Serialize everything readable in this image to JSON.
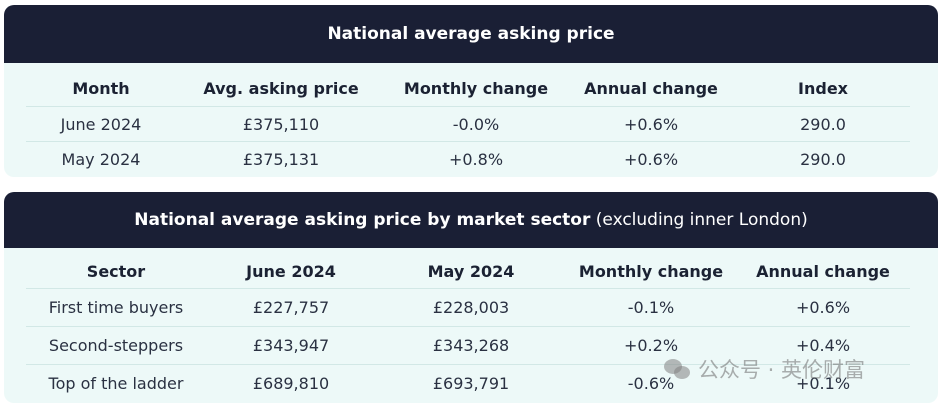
{
  "table1": {
    "title": "National average asking price",
    "headers": [
      "Month",
      "Avg. asking price",
      "Monthly change",
      "Annual change",
      "Index"
    ],
    "rows": [
      [
        "June 2024",
        "£375,110",
        "-0.0%",
        "+0.6%",
        "290.0"
      ],
      [
        "May 2024",
        "£375,131",
        "+0.8%",
        "+0.6%",
        "290.0"
      ]
    ]
  },
  "table2": {
    "title_bold": "National average asking price by market sector",
    "title_light": " (excluding inner London)",
    "headers": [
      "Sector",
      "June 2024",
      "May 2024",
      "Monthly change",
      "Annual change"
    ],
    "rows": [
      [
        "First time buyers",
        "£227,757",
        "£228,003",
        "-0.1%",
        "+0.6%"
      ],
      [
        "Second-steppers",
        "£343,947",
        "£343,268",
        "+0.2%",
        "+0.4%"
      ],
      [
        "Top of the ladder",
        "£689,810",
        "£693,791",
        "-0.6%",
        "+0.1%"
      ]
    ]
  },
  "watermark": {
    "icon": "wechat-icon",
    "text": "公众号 · 英伦财富"
  }
}
